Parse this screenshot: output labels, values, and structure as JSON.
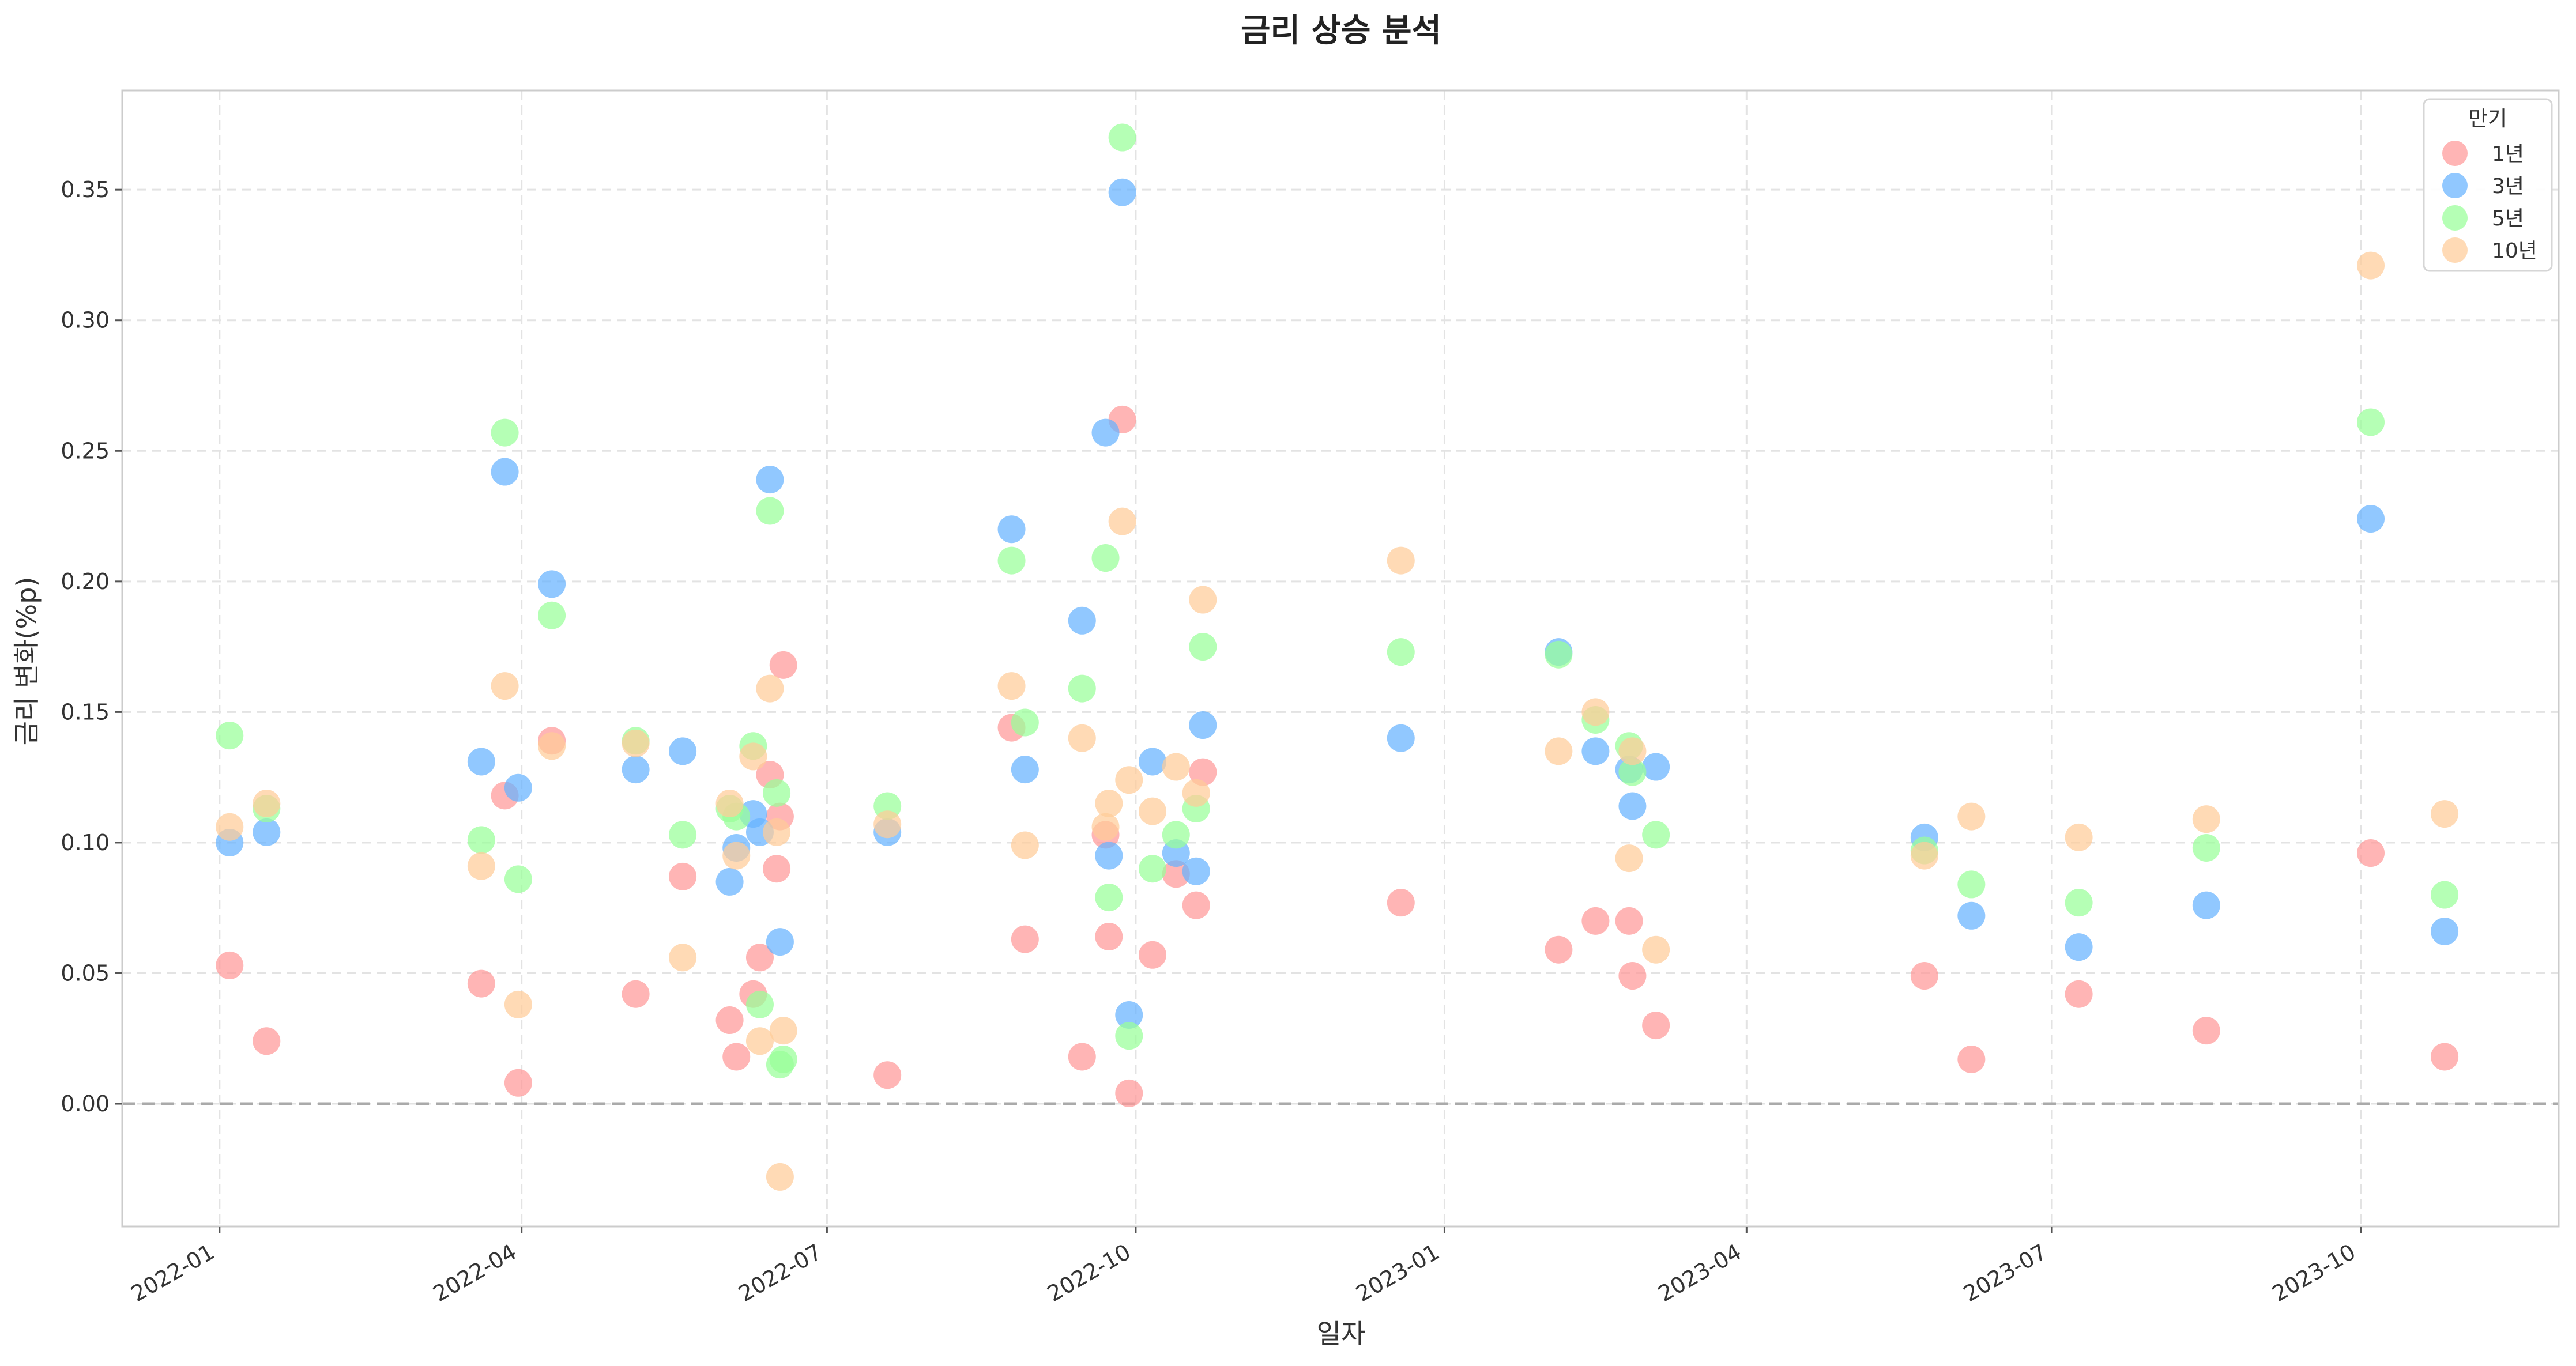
{
  "chart_data": {
    "type": "scatter",
    "title": "금리 상승 분석",
    "xlabel": "일자",
    "ylabel": "금리 변화(%p)",
    "x_ticks": [
      "2022-01",
      "2022-04",
      "2022-07",
      "2022-10",
      "2023-01",
      "2023-04",
      "2023-07",
      "2023-10"
    ],
    "y_ticks": [
      "0.00",
      "0.05",
      "0.10",
      "0.15",
      "0.20",
      "0.25",
      "0.30",
      "0.35"
    ],
    "xlim": [
      "2021-12-03",
      "2023-11-29"
    ],
    "ylim": [
      -0.047,
      0.388
    ],
    "grid": true,
    "reference_line_y": 0,
    "legend": {
      "title": "만기",
      "placement": "top-right"
    },
    "series": [
      {
        "name": "1년",
        "color": "#ff9999",
        "points": [
          [
            "2022-01-04",
            0.053
          ],
          [
            "2022-01-15",
            0.024
          ],
          [
            "2022-03-20",
            0.046
          ],
          [
            "2022-03-27",
            0.118
          ],
          [
            "2022-03-31",
            0.008
          ],
          [
            "2022-04-10",
            0.139
          ],
          [
            "2022-05-05",
            0.042
          ],
          [
            "2022-05-19",
            0.087
          ],
          [
            "2022-06-02",
            0.032
          ],
          [
            "2022-06-04",
            0.018
          ],
          [
            "2022-06-09",
            0.042
          ],
          [
            "2022-06-11",
            0.056
          ],
          [
            "2022-06-14",
            0.126
          ],
          [
            "2022-06-16",
            0.09
          ],
          [
            "2022-06-17",
            0.11
          ],
          [
            "2022-06-18",
            0.168
          ],
          [
            "2022-07-19",
            0.011
          ],
          [
            "2022-08-25",
            0.144
          ],
          [
            "2022-08-29",
            0.063
          ],
          [
            "2022-09-15",
            0.018
          ],
          [
            "2022-09-22",
            0.103
          ],
          [
            "2022-09-23",
            0.064
          ],
          [
            "2022-09-27",
            0.262
          ],
          [
            "2022-09-29",
            0.004
          ],
          [
            "2022-10-06",
            0.057
          ],
          [
            "2022-10-13",
            0.088
          ],
          [
            "2022-10-19",
            0.076
          ],
          [
            "2022-10-21",
            0.127
          ],
          [
            "2022-12-19",
            0.077
          ],
          [
            "2023-02-04",
            0.059
          ],
          [
            "2023-02-15",
            0.07
          ],
          [
            "2023-02-25",
            0.07
          ],
          [
            "2023-02-26",
            0.049
          ],
          [
            "2023-03-05",
            0.03
          ],
          [
            "2023-05-24",
            0.049
          ],
          [
            "2023-06-07",
            0.017
          ],
          [
            "2023-07-09",
            0.042
          ],
          [
            "2023-08-16",
            0.028
          ],
          [
            "2023-10-04",
            0.096
          ],
          [
            "2023-10-26",
            0.018
          ]
        ]
      },
      {
        "name": "3년",
        "color": "#66b3ff",
        "points": [
          [
            "2022-01-04",
            0.1
          ],
          [
            "2022-01-15",
            0.104
          ],
          [
            "2022-03-20",
            0.131
          ],
          [
            "2022-03-27",
            0.242
          ],
          [
            "2022-03-31",
            0.121
          ],
          [
            "2022-04-10",
            0.199
          ],
          [
            "2022-05-05",
            0.128
          ],
          [
            "2022-05-19",
            0.135
          ],
          [
            "2022-06-02",
            0.085
          ],
          [
            "2022-06-04",
            0.098
          ],
          [
            "2022-06-09",
            0.111
          ],
          [
            "2022-06-11",
            0.104
          ],
          [
            "2022-06-14",
            0.239
          ],
          [
            "2022-06-17",
            0.062
          ],
          [
            "2022-07-19",
            0.104
          ],
          [
            "2022-08-25",
            0.22
          ],
          [
            "2022-08-29",
            0.128
          ],
          [
            "2022-09-15",
            0.185
          ],
          [
            "2022-09-22",
            0.257
          ],
          [
            "2022-09-23",
            0.095
          ],
          [
            "2022-09-27",
            0.349
          ],
          [
            "2022-09-29",
            0.034
          ],
          [
            "2022-10-06",
            0.131
          ],
          [
            "2022-10-13",
            0.096
          ],
          [
            "2022-10-19",
            0.089
          ],
          [
            "2022-10-21",
            0.145
          ],
          [
            "2022-12-19",
            0.14
          ],
          [
            "2023-02-04",
            0.173
          ],
          [
            "2023-02-15",
            0.135
          ],
          [
            "2023-02-25",
            0.128
          ],
          [
            "2023-02-26",
            0.114
          ],
          [
            "2023-03-05",
            0.129
          ],
          [
            "2023-05-24",
            0.102
          ],
          [
            "2023-06-07",
            0.072
          ],
          [
            "2023-07-09",
            0.06
          ],
          [
            "2023-08-16",
            0.076
          ],
          [
            "2023-10-04",
            0.224
          ],
          [
            "2023-10-26",
            0.066
          ]
        ]
      },
      {
        "name": "5년",
        "color": "#99ff99",
        "points": [
          [
            "2022-01-04",
            0.141
          ],
          [
            "2022-01-15",
            0.113
          ],
          [
            "2022-03-20",
            0.101
          ],
          [
            "2022-03-27",
            0.257
          ],
          [
            "2022-03-31",
            0.086
          ],
          [
            "2022-04-10",
            0.187
          ],
          [
            "2022-05-05",
            0.139
          ],
          [
            "2022-05-19",
            0.103
          ],
          [
            "2022-06-02",
            0.113
          ],
          [
            "2022-06-04",
            0.11
          ],
          [
            "2022-06-09",
            0.137
          ],
          [
            "2022-06-11",
            0.038
          ],
          [
            "2022-06-14",
            0.227
          ],
          [
            "2022-06-16",
            0.119
          ],
          [
            "2022-06-17",
            0.015
          ],
          [
            "2022-06-18",
            0.017
          ],
          [
            "2022-07-19",
            0.114
          ],
          [
            "2022-08-25",
            0.208
          ],
          [
            "2022-08-29",
            0.146
          ],
          [
            "2022-09-15",
            0.159
          ],
          [
            "2022-09-22",
            0.209
          ],
          [
            "2022-09-23",
            0.079
          ],
          [
            "2022-09-27",
            0.37
          ],
          [
            "2022-09-29",
            0.026
          ],
          [
            "2022-10-06",
            0.09
          ],
          [
            "2022-10-13",
            0.103
          ],
          [
            "2022-10-19",
            0.113
          ],
          [
            "2022-10-21",
            0.175
          ],
          [
            "2022-12-19",
            0.173
          ],
          [
            "2023-02-04",
            0.172
          ],
          [
            "2023-02-15",
            0.147
          ],
          [
            "2023-02-25",
            0.137
          ],
          [
            "2023-02-26",
            0.127
          ],
          [
            "2023-03-05",
            0.103
          ],
          [
            "2023-05-24",
            0.097
          ],
          [
            "2023-06-07",
            0.084
          ],
          [
            "2023-07-09",
            0.077
          ],
          [
            "2023-08-16",
            0.098
          ],
          [
            "2023-10-04",
            0.261
          ],
          [
            "2023-10-26",
            0.08
          ]
        ]
      },
      {
        "name": "10년",
        "color": "#ffcc99",
        "points": [
          [
            "2022-01-04",
            0.106
          ],
          [
            "2022-01-15",
            0.115
          ],
          [
            "2022-03-20",
            0.091
          ],
          [
            "2022-03-27",
            0.16
          ],
          [
            "2022-03-31",
            0.038
          ],
          [
            "2022-04-10",
            0.137
          ],
          [
            "2022-05-05",
            0.138
          ],
          [
            "2022-05-19",
            0.056
          ],
          [
            "2022-06-02",
            0.115
          ],
          [
            "2022-06-04",
            0.095
          ],
          [
            "2022-06-09",
            0.133
          ],
          [
            "2022-06-11",
            0.024
          ],
          [
            "2022-06-14",
            0.159
          ],
          [
            "2022-06-16",
            0.104
          ],
          [
            "2022-06-17",
            -0.028
          ],
          [
            "2022-06-18",
            0.028
          ],
          [
            "2022-07-19",
            0.107
          ],
          [
            "2022-08-25",
            0.16
          ],
          [
            "2022-08-29",
            0.099
          ],
          [
            "2022-09-15",
            0.14
          ],
          [
            "2022-09-22",
            0.106
          ],
          [
            "2022-09-23",
            0.115
          ],
          [
            "2022-09-27",
            0.223
          ],
          [
            "2022-09-29",
            0.124
          ],
          [
            "2022-10-06",
            0.112
          ],
          [
            "2022-10-13",
            0.129
          ],
          [
            "2022-10-19",
            0.119
          ],
          [
            "2022-10-21",
            0.193
          ],
          [
            "2022-12-19",
            0.208
          ],
          [
            "2023-02-04",
            0.135
          ],
          [
            "2023-02-15",
            0.15
          ],
          [
            "2023-02-25",
            0.094
          ],
          [
            "2023-02-26",
            0.135
          ],
          [
            "2023-03-05",
            0.059
          ],
          [
            "2023-05-24",
            0.095
          ],
          [
            "2023-06-07",
            0.11
          ],
          [
            "2023-07-09",
            0.102
          ],
          [
            "2023-08-16",
            0.109
          ],
          [
            "2023-10-04",
            0.321
          ],
          [
            "2023-10-26",
            0.111
          ]
        ]
      }
    ]
  }
}
